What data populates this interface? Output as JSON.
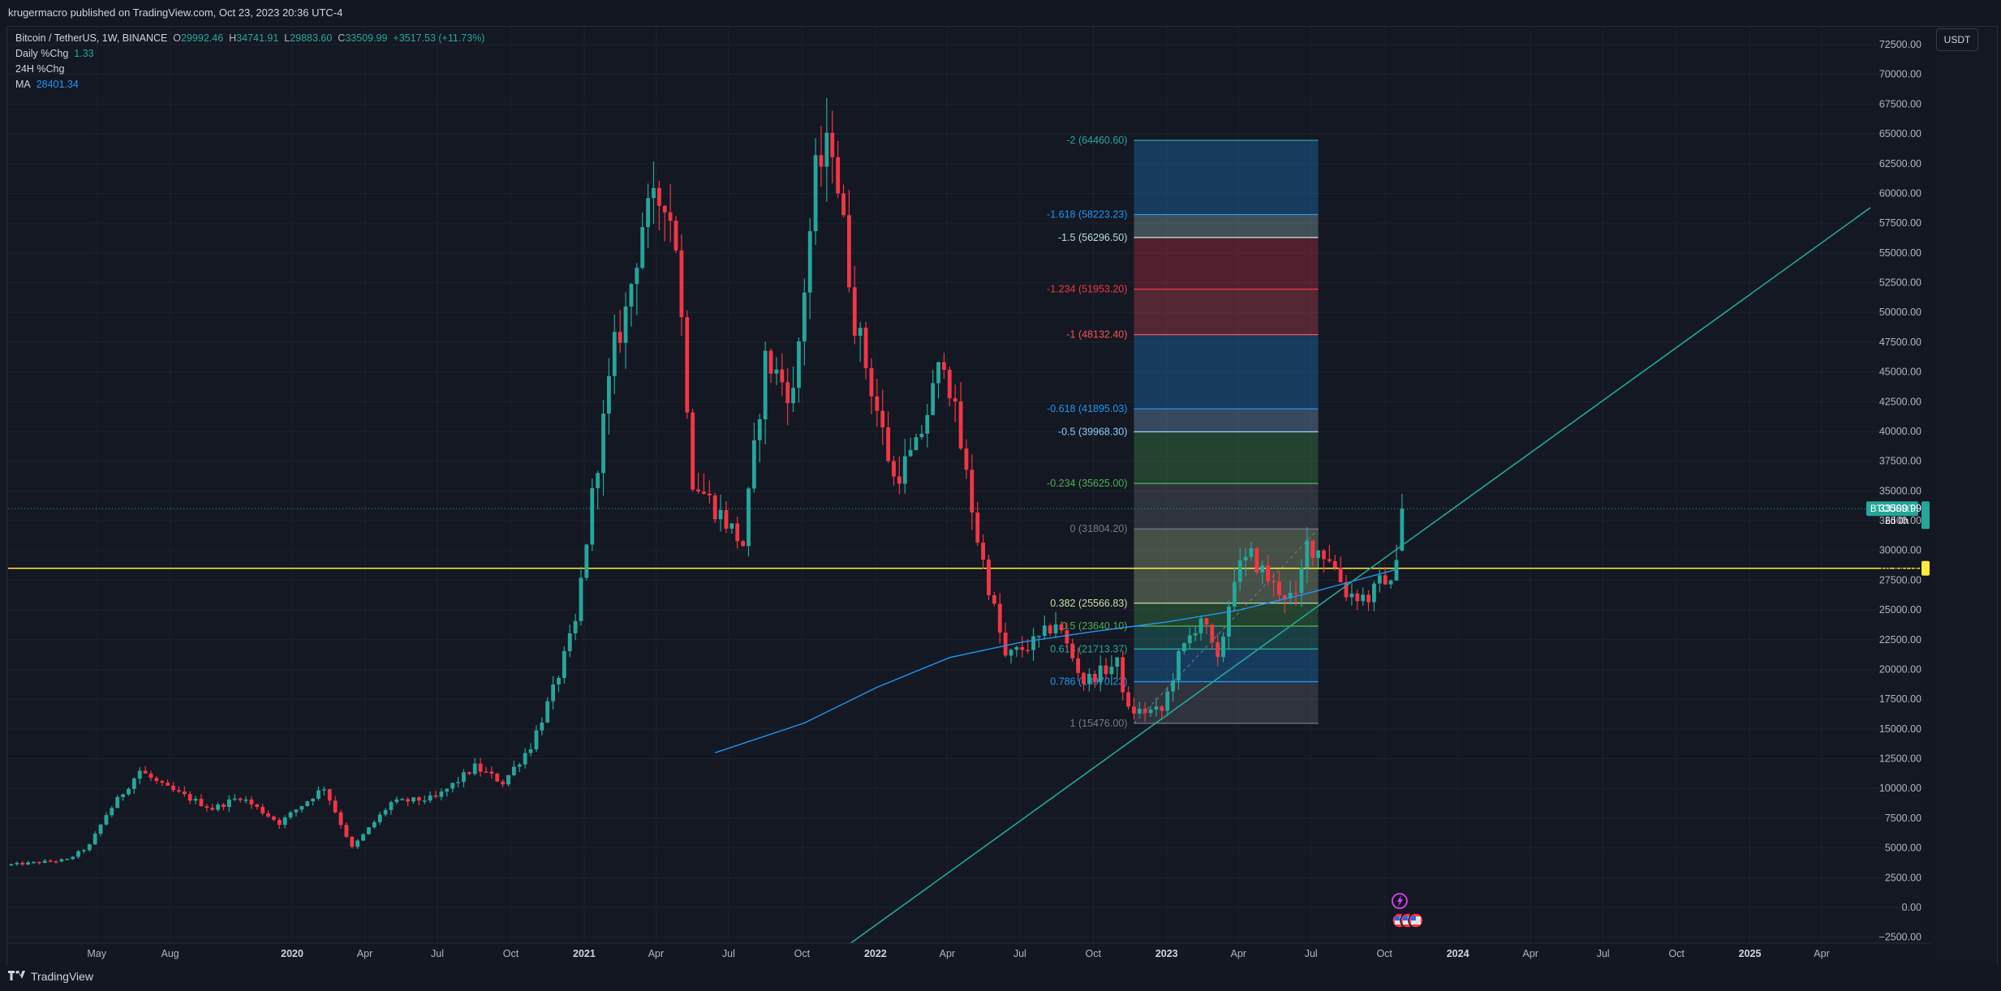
{
  "header": {
    "published": "krugermacro published on TradingView.com, Oct 23, 2023 20:36 UTC-4"
  },
  "legend": {
    "symbol": "Bitcoin / TetherUS, 1W, BINANCE",
    "o_label": "O",
    "o": "29992.46",
    "h_label": "H",
    "h": "34741.91",
    "l_label": "L",
    "l": "29883.60",
    "c_label": "C",
    "c": "33509.99",
    "chg": "+3517.53 (+11.73%)",
    "daily_label": "Daily %Chg",
    "daily_val": "1.33",
    "h24_label": "24H %Chg",
    "ma_label": "MA",
    "ma_val": "28401.34"
  },
  "currency_button": "USDT",
  "footer": {
    "brand": "TradingView",
    "logo": "tv-logo-icon"
  },
  "colors": {
    "up": "#26a69a",
    "down": "#f23645",
    "ma": "#2196f3",
    "level_line": "#ffeb3b",
    "trend": "#26a69a",
    "bg": "#131722",
    "grid": "#1e222d",
    "text": "#b2b5be"
  },
  "price_tags": [
    {
      "name": "BTCUSDT",
      "price": "33509.99",
      "countdown": "6d 0h",
      "value": 33509.99
    },
    {
      "price": "28500.00",
      "value": 28500
    }
  ],
  "event_icons": [
    "lightning-icon",
    "us-flag-icon",
    "us-flag-icon",
    "us-flag-icon"
  ],
  "chart_data": {
    "type": "candlestick",
    "y_axis": {
      "ylim": [
        -3000,
        74000
      ],
      "ticks": [
        -2500,
        0,
        2500,
        5000,
        7500,
        10000,
        12500,
        15000,
        17500,
        20000,
        22500,
        25000,
        27500,
        30000,
        32500,
        35000,
        37500,
        40000,
        42500,
        45000,
        47500,
        50000,
        52500,
        55000,
        57500,
        60000,
        62500,
        65000,
        67500,
        70000,
        72500
      ],
      "tick_labels": [
        "−2500.00",
        "0.00",
        "2500.00",
        "5000.00",
        "7500.00",
        "10000.00",
        "12500.00",
        "15000.00",
        "17500.00",
        "20000.00",
        "22500.00",
        "25000.00",
        "27500.00",
        "30000.00",
        "32500.00",
        "35000.00",
        "37500.00",
        "40000.00",
        "42500.00",
        "45000.00",
        "47500.00",
        "50000.00",
        "52500.00",
        "55000.00",
        "57500.00",
        "60000.00",
        "62500.00",
        "65000.00",
        "67500.00",
        "70000.00",
        "72500.00"
      ]
    },
    "x_axis": {
      "xlim": [
        "2019-01-10",
        "2025-08-01"
      ],
      "ticks": [
        "2019-05-01",
        "2019-08-01",
        "2020-01-01",
        "2020-04-01",
        "2020-07-01",
        "2020-10-01",
        "2021-01-01",
        "2021-04-01",
        "2021-07-01",
        "2021-10-01",
        "2022-01-01",
        "2022-04-01",
        "2022-07-01",
        "2022-10-01",
        "2023-01-01",
        "2023-04-01",
        "2023-07-01",
        "2023-10-01",
        "2024-01-01",
        "2024-04-01",
        "2024-07-01",
        "2024-10-01",
        "2025-01-01",
        "2025-04-01"
      ],
      "tick_labels": [
        "May",
        "Aug",
        "2020",
        "Apr",
        "Jul",
        "Oct",
        "2021",
        "Apr",
        "Jul",
        "Oct",
        "2022",
        "Apr",
        "Jul",
        "Oct",
        "2023",
        "Apr",
        "Jul",
        "Oct",
        "2024",
        "Apr",
        "Jul",
        "Oct",
        "2025",
        "Apr"
      ]
    },
    "anchors": [
      [
        "2019-01-14",
        3600
      ],
      [
        "2019-03-25",
        4000
      ],
      [
        "2019-04-22",
        5200
      ],
      [
        "2019-05-13",
        7800
      ],
      [
        "2019-06-24",
        11500
      ],
      [
        "2019-07-22",
        10200
      ],
      [
        "2019-09-23",
        8300
      ],
      [
        "2019-10-28",
        9300
      ],
      [
        "2019-12-16",
        7100
      ],
      [
        "2020-02-10",
        10100
      ],
      [
        "2020-03-16",
        5000
      ],
      [
        "2020-05-04",
        8800
      ],
      [
        "2020-06-29",
        9200
      ],
      [
        "2020-08-17",
        11800
      ],
      [
        "2020-09-21",
        10500
      ],
      [
        "2020-10-26",
        13600
      ],
      [
        "2020-11-23",
        18200
      ],
      [
        "2020-12-21",
        23800
      ],
      [
        "2021-01-11",
        34500
      ],
      [
        "2021-02-08",
        47000
      ],
      [
        "2021-02-22",
        50000
      ],
      [
        "2021-03-15",
        57500
      ],
      [
        "2021-04-12",
        60000
      ],
      [
        "2021-04-26",
        56000
      ],
      [
        "2021-05-17",
        36000
      ],
      [
        "2021-06-21",
        33000
      ],
      [
        "2021-07-19",
        30500
      ],
      [
        "2021-08-16",
        46000
      ],
      [
        "2021-09-20",
        43000
      ],
      [
        "2021-10-18",
        61500
      ],
      [
        "2021-11-08",
        64500
      ],
      [
        "2021-12-06",
        49500
      ],
      [
        "2022-01-24",
        36000
      ],
      [
        "2022-02-21",
        38500
      ],
      [
        "2022-03-28",
        46500
      ],
      [
        "2022-05-09",
        31000
      ],
      [
        "2022-06-13",
        21000
      ],
      [
        "2022-07-25",
        22500
      ],
      [
        "2022-08-15",
        24000
      ],
      [
        "2022-09-19",
        19000
      ],
      [
        "2022-10-31",
        20500
      ],
      [
        "2022-11-14",
        16500
      ],
      [
        "2022-12-26",
        16500
      ],
      [
        "2023-01-16",
        21000
      ],
      [
        "2023-02-13",
        24500
      ],
      [
        "2023-03-06",
        20500
      ],
      [
        "2023-03-27",
        28000
      ],
      [
        "2023-04-17",
        29500
      ],
      [
        "2023-05-15",
        27000
      ],
      [
        "2023-06-12",
        25800
      ],
      [
        "2023-06-26",
        30500
      ],
      [
        "2023-07-24",
        29500
      ],
      [
        "2023-08-14",
        26500
      ],
      [
        "2023-09-11",
        26000
      ],
      [
        "2023-10-02",
        27800
      ],
      [
        "2023-10-09",
        26800
      ],
      [
        "2023-10-16",
        29992.46
      ],
      [
        "2023-10-23",
        33509.99
      ]
    ],
    "last_candle": {
      "date": "2023-10-23",
      "open": 29992.46,
      "high": 34741.91,
      "low": 29883.6,
      "close": 33509.99
    },
    "moving_average": {
      "points": [
        [
          "2021-06-14",
          13000
        ],
        [
          "2021-10-04",
          15500
        ],
        [
          "2022-01-03",
          18500
        ],
        [
          "2022-04-04",
          21000
        ],
        [
          "2022-07-04",
          22300
        ],
        [
          "2022-10-03",
          23200
        ],
        [
          "2023-01-02",
          24000
        ],
        [
          "2023-04-03",
          25000
        ],
        [
          "2023-07-03",
          26500
        ],
        [
          "2023-10-16",
          28401.34
        ]
      ]
    },
    "horizontal_line": {
      "value": 28500
    },
    "trend_line": {
      "points": [
        [
          "2021-12-01",
          -3000
        ],
        [
          "2025-06-01",
          58800
        ]
      ]
    },
    "fib_levels": [
      {
        "ratio": "-2",
        "value": 64460.6,
        "label": "-2 (64460.60)",
        "color": "#26a69a"
      },
      {
        "ratio": "-1.618",
        "value": 58223.23,
        "label": "-1.618 (58223.23)",
        "color": "#2196f3"
      },
      {
        "ratio": "-1.5",
        "value": 56296.5,
        "label": "-1.5 (56296.50)",
        "color": "#b2dfdb"
      },
      {
        "ratio": "-1.234",
        "value": 51953.2,
        "label": "-1.234 (51953.20)",
        "color": "#f23645"
      },
      {
        "ratio": "-1",
        "value": 48132.4,
        "label": "-1 (48132.40)",
        "color": "#f7525f"
      },
      {
        "ratio": "-0.618",
        "value": 41895.03,
        "label": "-0.618 (41895.03)",
        "color": "#2196f3"
      },
      {
        "ratio": "-0.5",
        "value": 39968.3,
        "label": "-0.5 (39968.30)",
        "color": "#90caf9"
      },
      {
        "ratio": "-0.234",
        "value": 35625.0,
        "label": "-0.234 (35625.00)",
        "color": "#4caf50"
      },
      {
        "ratio": "0",
        "value": 31804.2,
        "label": "0 (31804.20)",
        "color": "#787b86"
      },
      {
        "ratio": "0.382",
        "value": 25566.83,
        "label": "0.382 (25566.83)",
        "color": "#c5e1a5"
      },
      {
        "ratio": "0.5",
        "value": 23640.1,
        "label": "0.5 (23640.10)",
        "color": "#4caf50"
      },
      {
        "ratio": "0.618",
        "value": 21713.37,
        "label": "0.618 (21713.37)",
        "color": "#26a69a"
      },
      {
        "ratio": "0.786",
        "value": 18970.23,
        "label": "0.786 (18970.23)",
        "color": "#2196f3"
      },
      {
        "ratio": "1",
        "value": 15476.0,
        "label": "1 (15476.00)",
        "color": "#787b86"
      }
    ],
    "fib_box": {
      "x_start": "2022-11-21",
      "x_end": "2023-07-10"
    },
    "fib_trend": {
      "points": [
        [
          "2022-11-21",
          15476
        ],
        [
          "2023-07-10",
          31804.2
        ]
      ]
    }
  }
}
